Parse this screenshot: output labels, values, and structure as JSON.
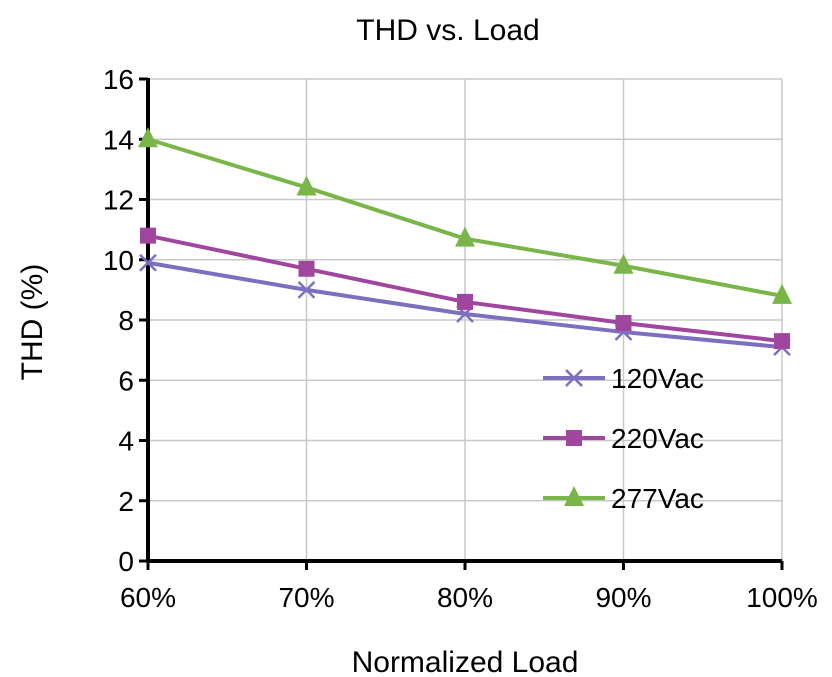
{
  "chart_data": {
    "type": "line",
    "title": "THD vs. Load",
    "xlabel": "Normalized Load",
    "ylabel": "THD (%)",
    "categories": [
      "60%",
      "70%",
      "80%",
      "90%",
      "100%"
    ],
    "ylim": [
      0,
      16
    ],
    "yticks": [
      "0",
      "2",
      "4",
      "6",
      "8",
      "10",
      "12",
      "14",
      "16"
    ],
    "grid": true,
    "legend_position": "bottom-right",
    "series": [
      {
        "name": "120Vac",
        "values": [
          9.9,
          9.0,
          8.2,
          7.6,
          7.1
        ],
        "color": "#7b6fc0",
        "marker": "x"
      },
      {
        "name": "220Vac",
        "values": [
          10.8,
          9.7,
          8.6,
          7.9,
          7.3
        ],
        "color": "#a0469e",
        "marker": "square"
      },
      {
        "name": "277Vac",
        "values": [
          14.0,
          12.4,
          10.7,
          9.8,
          8.8
        ],
        "color": "#79b549",
        "marker": "triangle"
      }
    ]
  }
}
